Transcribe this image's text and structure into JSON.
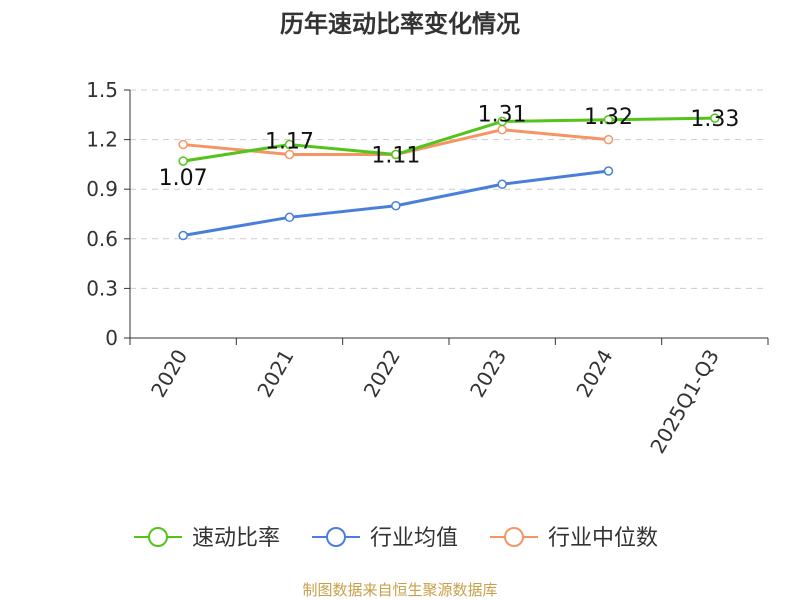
{
  "chart_data": {
    "type": "line",
    "title": "历年速动比率变化情况",
    "source": "制图数据来自恒生聚源数据库",
    "categories": [
      "2020",
      "2021",
      "2022",
      "2023",
      "2024",
      "2025Q1-Q3"
    ],
    "ylim": [
      0,
      1.5
    ],
    "yticks": [
      "0",
      "0.3",
      "0.6",
      "0.9",
      "1.2",
      "1.5"
    ],
    "grid": true,
    "legend_position": "bottom",
    "series": [
      {
        "name": "速动比率",
        "color": "#52c41a",
        "values": [
          1.07,
          1.17,
          1.11,
          1.31,
          1.32,
          1.33
        ],
        "labels": [
          "1.07",
          "1.17",
          "1.11",
          "1.31",
          "1.32",
          "1.33"
        ]
      },
      {
        "name": "行业均值",
        "color": "#4a7fd9",
        "values": [
          0.62,
          0.73,
          0.8,
          0.93,
          1.01,
          null
        ]
      },
      {
        "name": "行业中位数",
        "color": "#f59564",
        "values": [
          1.17,
          1.11,
          1.11,
          1.26,
          1.2,
          null
        ]
      }
    ]
  }
}
